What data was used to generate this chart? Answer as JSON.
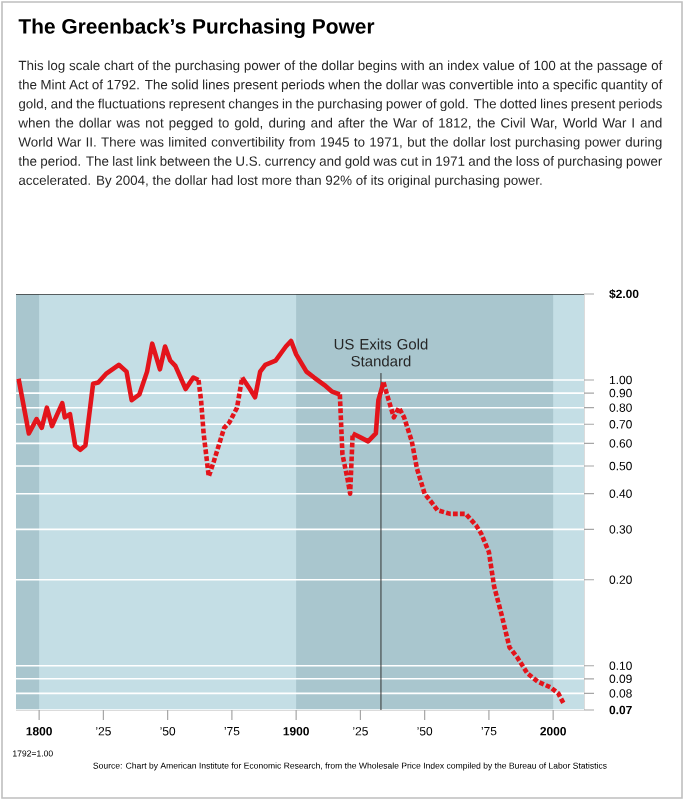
{
  "chart_data": {
    "type": "line",
    "title": "The Greenback’s Purchasing Power",
    "subtitle": "This log scale chart of the purchasing power of the dollar begins with an index value of 100 at the passage of the Mint Act of 1792. The solid lines present periods when the dollar was convertible into a specific quantity of gold, and the fluctuations represent changes in the purchasing power of gold. The dotted lines present periods when the dollar was not pegged to gold, during and after the War of 1812, the Civil War, World War I and World War II. There was limited convertibility from 1945 to 1971, but the dollar lost purchasing power during the period. The last link between the U.S. currency and gold was cut in 1971 and the loss of purchasing power accelerated. By 2004, the dollar had lost more than 92% of its original purchasing power.",
    "annotations": [
      "1792=1.00",
      "Source: Chart by American Institute for Economic Research, from the Wholesale Price Index compiled by the Bureau of Labor Statistics"
    ],
    "x": [
      1792,
      1796,
      1799,
      1801,
      1803,
      1805,
      1809,
      1810,
      1812,
      1814,
      1816,
      1818,
      1821,
      1823,
      1826,
      1831,
      1834,
      1836,
      1839,
      1842,
      1844,
      1847,
      1849,
      1851,
      1853,
      1857,
      1860,
      1862,
      1863,
      1864,
      1866,
      1868,
      1872,
      1874,
      1877,
      1879,
      1882,
      1884,
      1886,
      1888,
      1892,
      1896,
      1898,
      1900,
      1904,
      1907,
      1911,
      1914,
      1917,
      1918,
      1920,
      1921,
      1922,
      1925,
      1928,
      1931,
      1932,
      1934,
      1936,
      1938,
      1940,
      1942,
      1945,
      1947,
      1950,
      1953,
      1955,
      1960,
      1966,
      1970,
      1972,
      1975,
      1977,
      1980,
      1983,
      1986,
      1990,
      1994,
      1999,
      2002,
      2004
    ],
    "series": [
      {
        "color": "#e3141b",
        "line_style": "solid",
        "values": [
          1.01,
          0.65,
          0.73,
          0.68,
          0.8,
          0.69,
          0.83,
          0.74,
          0.76,
          0.59,
          0.57,
          0.59,
          0.97,
          0.98,
          1.05,
          1.13,
          1.07,
          0.85,
          0.89,
          1.07,
          1.34,
          1.09,
          1.31,
          1.17,
          1.12,
          0.93,
          1.02,
          1.0,
          null,
          null,
          null,
          null,
          null,
          null,
          null,
          1.02,
          0.93,
          0.87,
          1.07,
          1.13,
          1.17,
          1.31,
          1.37,
          1.23,
          1.07,
          1.02,
          0.96,
          0.91,
          0.89,
          null,
          null,
          null,
          0.65,
          0.63,
          0.61,
          0.65,
          0.85,
          0.98,
          null,
          null,
          null,
          null,
          null,
          null,
          null,
          null,
          null,
          null,
          null,
          null,
          null,
          null,
          null,
          null,
          null,
          null,
          null,
          null,
          null,
          null,
          null
        ]
      },
      {
        "color": "#e3141b",
        "line_style": "dotted",
        "values": [
          null,
          null,
          null,
          null,
          null,
          null,
          null,
          null,
          null,
          null,
          null,
          null,
          null,
          null,
          null,
          null,
          null,
          null,
          null,
          null,
          null,
          null,
          null,
          null,
          null,
          null,
          null,
          1.0,
          0.85,
          0.65,
          0.46,
          0.52,
          0.68,
          0.71,
          0.8,
          1.02,
          null,
          null,
          null,
          null,
          null,
          null,
          null,
          null,
          null,
          null,
          null,
          null,
          0.89,
          0.55,
          0.45,
          0.4,
          0.65,
          null,
          null,
          null,
          null,
          0.98,
          0.85,
          0.74,
          0.8,
          0.74,
          0.61,
          0.49,
          0.4,
          0.37,
          0.35,
          0.34,
          0.34,
          0.31,
          0.29,
          0.25,
          0.19,
          0.15,
          0.116,
          0.107,
          0.094,
          0.088,
          0.084,
          0.08,
          0.074
        ]
      }
    ],
    "log": "y",
    "xlim": [
      1791,
      2012
    ],
    "ylim": [
      0.07,
      2.0
    ],
    "xticks": [
      1800,
      {
        "value": 1825,
        "label": "’25"
      },
      {
        "value": 1850,
        "label": "’50"
      },
      {
        "value": 1875,
        "label": "’75"
      },
      1900,
      {
        "value": 1925,
        "label": "’25"
      },
      {
        "value": 1950,
        "label": "’50"
      },
      {
        "value": 1975,
        "label": "’75"
      },
      2000
    ],
    "yticks": [
      {
        "value": 0.07,
        "label": "0.07"
      },
      {
        "value": 0.08,
        "label": "0.08"
      },
      {
        "value": 0.09,
        "label": "0.09"
      },
      {
        "value": 0.1,
        "label": "0.10"
      },
      {
        "value": 0.2,
        "label": "0.20"
      },
      {
        "value": 0.3,
        "label": "0.30"
      },
      {
        "value": 0.4,
        "label": "0.40"
      },
      {
        "value": 0.5,
        "label": "0.50"
      },
      {
        "value": 0.6,
        "label": "0.60"
      },
      {
        "value": 0.7,
        "label": "0.70"
      },
      {
        "value": 0.8,
        "label": "0.80"
      },
      {
        "value": 0.9,
        "label": "0.90"
      },
      {
        "value": 1.0,
        "label": "1.00"
      },
      {
        "value": 2.0,
        "label": "$2.00"
      }
    ],
    "grid": "y",
    "marker": "none",
    "ref_lines": [
      {
        "axis": "x",
        "value": 1933,
        "label": "US Exits Gold Standard",
        "color": "#333333"
      }
    ],
    "bands": [
      {
        "axis": "x",
        "from": 1791,
        "to": 1800,
        "color": "#a9c6ce"
      },
      {
        "axis": "x",
        "from": 1900,
        "to": 2000,
        "color": "#a9c6ce"
      }
    ]
  }
}
